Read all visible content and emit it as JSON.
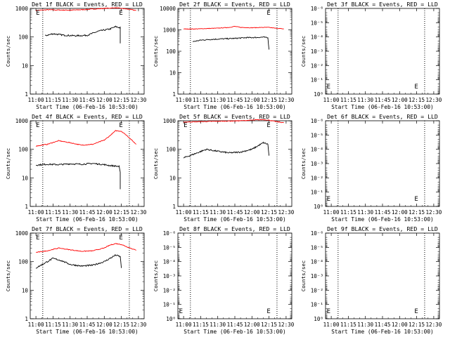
{
  "chart_data": [
    {
      "type": "line",
      "title": "Det 1f BLACK = Events, RED = LLD",
      "xlabel": "Start Time (06-Feb-16 10:53:00)",
      "ylabel": "Counts/sec",
      "x_ticks": [
        "11:00",
        "11:15",
        "11:30",
        "11:45",
        "12:00",
        "12:15",
        "12:30"
      ],
      "x_tick_minutes": [
        0,
        15,
        30,
        45,
        60,
        75,
        90
      ],
      "xlim_minutes": [
        -5,
        95
      ],
      "y_scale": "log",
      "ylim": [
        1,
        1000
      ],
      "y_ticks": [
        "1",
        "10",
        "100",
        "1000"
      ],
      "y_tick_values": [
        1,
        10,
        100,
        1000
      ],
      "vlines_minutes": [
        6,
        82
      ],
      "markers": [
        {
          "text": "E",
          "x_minute": 0,
          "y_value": 1000
        },
        {
          "text": "E",
          "x_minute": 73,
          "y_value": 1000
        }
      ],
      "series": [
        {
          "color": "#ff0000",
          "x_minutes": [
            0,
            10,
            20,
            30,
            40,
            50,
            60,
            70,
            75,
            80,
            88
          ],
          "values": [
            850,
            900,
            880,
            870,
            900,
            950,
            1000,
            1050,
            1000,
            950,
            850
          ]
        },
        {
          "color": "#000000",
          "x_minutes": [
            8,
            15,
            25,
            35,
            45,
            55,
            65,
            70,
            74,
            74
          ],
          "values": [
            110,
            130,
            115,
            110,
            115,
            160,
            190,
            230,
            210,
            60
          ]
        }
      ]
    },
    {
      "type": "line",
      "title": "Det 2f BLACK = Events, RED = LLD",
      "xlabel": "Start Time (06-Feb-16 10:53:00)",
      "ylabel": "Counts/sec",
      "x_ticks": [
        "11:00",
        "11:15",
        "11:30",
        "11:45",
        "12:00",
        "12:15",
        "12:30"
      ],
      "x_tick_minutes": [
        0,
        15,
        30,
        45,
        60,
        75,
        90
      ],
      "xlim_minutes": [
        -5,
        95
      ],
      "y_scale": "log",
      "ylim": [
        1,
        10000
      ],
      "y_ticks": [
        "1",
        "10",
        "100",
        "1000",
        "10000"
      ],
      "y_tick_values": [
        1,
        10,
        100,
        1000,
        10000
      ],
      "vlines_minutes": [
        6,
        82
      ],
      "markers": [
        {
          "text": "E",
          "x_minute": 73,
          "y_value": 10000
        }
      ],
      "series": [
        {
          "color": "#ff0000",
          "x_minutes": [
            0,
            10,
            20,
            30,
            40,
            45,
            50,
            60,
            70,
            75,
            80,
            88
          ],
          "values": [
            1100,
            1100,
            1150,
            1200,
            1300,
            1450,
            1300,
            1250,
            1300,
            1300,
            1200,
            1100
          ]
        },
        {
          "color": "#000000",
          "x_minutes": [
            8,
            15,
            25,
            35,
            45,
            55,
            65,
            70,
            74,
            75
          ],
          "values": [
            280,
            330,
            360,
            380,
            400,
            430,
            440,
            460,
            420,
            120
          ]
        }
      ]
    },
    {
      "type": "line",
      "title": "Det 3f BLACK = Events, RED = LLD",
      "xlabel": "Start Time (06-Feb-16 10:53:00)",
      "ylabel": "Counts/sec",
      "x_ticks": [
        "11:00",
        "11:15",
        "11:30",
        "11:45",
        "12:00",
        "12:15",
        "12:30"
      ],
      "x_tick_minutes": [
        0,
        15,
        30,
        45,
        60,
        75,
        90
      ],
      "xlim_minutes": [
        -5,
        95
      ],
      "y_scale": "log",
      "ylim": [
        1,
        1e-06
      ],
      "y_ticks": [
        "10⁰",
        "10⁻¹",
        "10⁻²",
        "10⁻³",
        "10⁻⁴",
        "10⁻⁵",
        "10⁻⁶"
      ],
      "y_tick_values": [
        1,
        0.1,
        0.01,
        0.001,
        0.0001,
        1e-05,
        1e-06
      ],
      "vlines_minutes": [
        6,
        82
      ],
      "markers": [
        {
          "text": "E",
          "x_minute": -4,
          "y_value": 0.4
        },
        {
          "text": "E",
          "x_minute": 73,
          "y_value": 0.4
        }
      ],
      "series": []
    },
    {
      "type": "line",
      "title": "Det 4f BLACK = Events, RED = LLD",
      "xlabel": "Start Time (06-Feb-16 10:53:00)",
      "ylabel": "Counts/sec",
      "x_ticks": [
        "11:00",
        "11:15",
        "11:30",
        "11:45",
        "12:00",
        "12:15",
        "12:30"
      ],
      "x_tick_minutes": [
        0,
        15,
        30,
        45,
        60,
        75,
        90
      ],
      "xlim_minutes": [
        -5,
        95
      ],
      "y_scale": "log",
      "ylim": [
        1,
        1000
      ],
      "y_ticks": [
        "1",
        "10",
        "100",
        "1000"
      ],
      "y_tick_values": [
        1,
        10,
        100,
        1000
      ],
      "vlines_minutes": [
        6,
        82
      ],
      "markers": [
        {
          "text": "E",
          "x_minute": 0,
          "y_value": 1000
        },
        {
          "text": "E",
          "x_minute": 73,
          "y_value": 1000
        }
      ],
      "series": [
        {
          "color": "#ff0000",
          "x_minutes": [
            0,
            10,
            20,
            30,
            40,
            50,
            60,
            65,
            70,
            75,
            80,
            88
          ],
          "values": [
            130,
            150,
            200,
            170,
            140,
            150,
            210,
            300,
            450,
            430,
            300,
            150
          ]
        },
        {
          "color": "#000000",
          "x_minutes": [
            0,
            10,
            20,
            30,
            40,
            50,
            60,
            65,
            70,
            73,
            74,
            74
          ],
          "values": [
            28,
            30,
            29,
            31,
            30,
            32,
            29,
            27,
            26,
            25,
            15,
            4
          ]
        }
      ]
    },
    {
      "type": "line",
      "title": "Det 5f BLACK = Events, RED = LLD",
      "xlabel": "Start Time (06-Feb-16 10:53:00)",
      "ylabel": "Counts/sec",
      "x_ticks": [
        "11:00",
        "11:15",
        "11:30",
        "11:45",
        "12:00",
        "12:15",
        "12:30"
      ],
      "x_tick_minutes": [
        0,
        15,
        30,
        45,
        60,
        75,
        90
      ],
      "xlim_minutes": [
        -5,
        95
      ],
      "y_scale": "log",
      "ylim": [
        1,
        1000
      ],
      "y_ticks": [
        "1",
        "10",
        "100",
        "1000"
      ],
      "y_tick_values": [
        1,
        10,
        100,
        1000
      ],
      "vlines_minutes": [
        6,
        82
      ],
      "markers": [
        {
          "text": "E",
          "x_minute": 0,
          "y_value": 1000
        },
        {
          "text": "E",
          "x_minute": 73,
          "y_value": 1000
        }
      ],
      "series": [
        {
          "color": "#ff0000",
          "x_minutes": [
            0,
            10,
            20,
            30,
            40,
            50,
            60,
            70,
            75,
            80,
            88
          ],
          "values": [
            900,
            920,
            940,
            960,
            980,
            1000,
            1050,
            1100,
            1050,
            950,
            850
          ]
        },
        {
          "color": "#000000",
          "x_minutes": [
            0,
            10,
            20,
            30,
            40,
            50,
            60,
            65,
            70,
            74,
            75
          ],
          "values": [
            50,
            70,
            100,
            85,
            75,
            80,
            100,
            130,
            170,
            150,
            60
          ]
        }
      ]
    },
    {
      "type": "line",
      "title": "Det 6f BLACK = Events, RED = LLD",
      "xlabel": "Start Time (06-Feb-16 10:53:00)",
      "ylabel": "Counts/sec",
      "x_ticks": [
        "11:00",
        "11:15",
        "11:30",
        "11:45",
        "12:00",
        "12:15",
        "12:30"
      ],
      "x_tick_minutes": [
        0,
        15,
        30,
        45,
        60,
        75,
        90
      ],
      "xlim_minutes": [
        -5,
        95
      ],
      "y_scale": "log",
      "ylim": [
        1,
        1e-06
      ],
      "y_ticks": [
        "10⁰",
        "10⁻¹",
        "10⁻²",
        "10⁻³",
        "10⁻⁴",
        "10⁻⁵",
        "10⁻⁶"
      ],
      "y_tick_values": [
        1,
        0.1,
        0.01,
        0.001,
        0.0001,
        1e-05,
        1e-06
      ],
      "vlines_minutes": [
        6,
        82
      ],
      "markers": [
        {
          "text": "E",
          "x_minute": -4,
          "y_value": 0.4
        },
        {
          "text": "E",
          "x_minute": 73,
          "y_value": 0.4
        }
      ],
      "series": []
    },
    {
      "type": "line",
      "title": "Det 7f BLACK = Events, RED = LLD",
      "xlabel": "Start Time (06-Feb-16 10:53:00)",
      "ylabel": "Counts/sec",
      "x_ticks": [
        "11:00",
        "11:15",
        "11:30",
        "11:45",
        "12:00",
        "12:15",
        "12:30"
      ],
      "x_tick_minutes": [
        0,
        15,
        30,
        45,
        60,
        75,
        90
      ],
      "xlim_minutes": [
        -5,
        95
      ],
      "y_scale": "log",
      "ylim": [
        1,
        1000
      ],
      "y_ticks": [
        "1",
        "10",
        "100",
        "1000"
      ],
      "y_tick_values": [
        1,
        10,
        100,
        1000
      ],
      "vlines_minutes": [
        6,
        82
      ],
      "markers": [
        {
          "text": "E",
          "x_minute": 0,
          "y_value": 1000
        },
        {
          "text": "E",
          "x_minute": 73,
          "y_value": 1000
        }
      ],
      "series": [
        {
          "color": "#ff0000",
          "x_minutes": [
            0,
            10,
            20,
            30,
            40,
            50,
            60,
            65,
            70,
            75,
            80,
            88
          ],
          "values": [
            210,
            240,
            300,
            260,
            230,
            240,
            300,
            380,
            430,
            400,
            330,
            250
          ]
        },
        {
          "color": "#000000",
          "x_minutes": [
            0,
            8,
            15,
            22,
            30,
            40,
            50,
            60,
            65,
            70,
            74,
            75
          ],
          "values": [
            60,
            90,
            130,
            110,
            80,
            70,
            75,
            100,
            130,
            170,
            150,
            60
          ]
        }
      ]
    },
    {
      "type": "line",
      "title": "Det 8f BLACK = Events, RED = LLD",
      "xlabel": "Start Time (06-Feb-16 10:53:00)",
      "ylabel": "Counts/sec",
      "x_ticks": [
        "11:00",
        "11:15",
        "11:30",
        "11:45",
        "12:00",
        "12:15",
        "12:30"
      ],
      "x_tick_minutes": [
        0,
        15,
        30,
        45,
        60,
        75,
        90
      ],
      "xlim_minutes": [
        -5,
        95
      ],
      "y_scale": "log",
      "ylim": [
        1,
        1e-06
      ],
      "y_ticks": [
        "10⁰",
        "10⁻¹",
        "10⁻²",
        "10⁻³",
        "10⁻⁴",
        "10⁻⁵",
        "10⁻⁶"
      ],
      "y_tick_values": [
        1,
        0.1,
        0.01,
        0.001,
        0.0001,
        1e-05,
        1e-06
      ],
      "vlines_minutes": [
        6,
        82
      ],
      "markers": [
        {
          "text": "E",
          "x_minute": -4,
          "y_value": 0.4
        },
        {
          "text": "E",
          "x_minute": 73,
          "y_value": 0.4
        }
      ],
      "series": []
    },
    {
      "type": "line",
      "title": "Det 9f BLACK = Events, RED = LLD",
      "xlabel": "Start Time (06-Feb-16 10:53:00)",
      "ylabel": "Counts/sec",
      "x_ticks": [
        "11:00",
        "11:15",
        "11:30",
        "11:45",
        "12:00",
        "12:15",
        "12:30"
      ],
      "x_tick_minutes": [
        0,
        15,
        30,
        45,
        60,
        75,
        90
      ],
      "xlim_minutes": [
        -5,
        95
      ],
      "y_scale": "log",
      "ylim": [
        1,
        1e-06
      ],
      "y_ticks": [
        "10⁰",
        "10⁻¹",
        "10⁻²",
        "10⁻³",
        "10⁻⁴",
        "10⁻⁵",
        "10⁻⁶"
      ],
      "y_tick_values": [
        1,
        0.1,
        0.01,
        0.001,
        0.0001,
        1e-05,
        1e-06
      ],
      "vlines_minutes": [
        6,
        82
      ],
      "markers": [
        {
          "text": "E",
          "x_minute": -4,
          "y_value": 0.4
        },
        {
          "text": "E",
          "x_minute": 73,
          "y_value": 0.4
        }
      ],
      "series": []
    }
  ]
}
